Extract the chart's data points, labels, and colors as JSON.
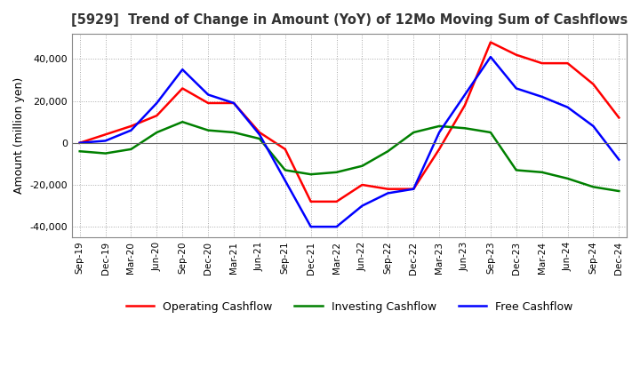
{
  "title": "[5929]  Trend of Change in Amount (YoY) of 12Mo Moving Sum of Cashflows",
  "ylabel": "Amount (million yen)",
  "ylim": [
    -45000,
    52000
  ],
  "yticks": [
    -40000,
    -20000,
    0,
    20000,
    40000
  ],
  "x_labels": [
    "Sep-19",
    "Dec-19",
    "Mar-20",
    "Jun-20",
    "Sep-20",
    "Dec-20",
    "Mar-21",
    "Jun-21",
    "Sep-21",
    "Dec-21",
    "Mar-22",
    "Jun-22",
    "Sep-22",
    "Dec-22",
    "Mar-23",
    "Jun-23",
    "Sep-23",
    "Dec-23",
    "Mar-24",
    "Jun-24",
    "Sep-24",
    "Dec-24"
  ],
  "operating": [
    0,
    4000,
    8000,
    13000,
    26000,
    19000,
    19000,
    5000,
    -3000,
    -28000,
    -28000,
    -20000,
    -22000,
    -22000,
    -3000,
    18000,
    48000,
    42000,
    38000,
    38000,
    28000,
    12000
  ],
  "investing": [
    -4000,
    -5000,
    -3000,
    5000,
    10000,
    6000,
    5000,
    2000,
    -13000,
    -15000,
    -14000,
    -11000,
    -4000,
    5000,
    8000,
    7000,
    5000,
    -13000,
    -14000,
    -17000,
    -21000,
    -23000
  ],
  "free": [
    0,
    1000,
    6000,
    19000,
    35000,
    23000,
    19000,
    4000,
    -18000,
    -40000,
    -40000,
    -30000,
    -24000,
    -22000,
    5000,
    23000,
    41000,
    26000,
    22000,
    17000,
    8000,
    -8000
  ],
  "op_color": "#ff0000",
  "inv_color": "#008000",
  "free_color": "#0000ff",
  "bg_color": "#ffffff",
  "grid_color": "#aaaaaa"
}
